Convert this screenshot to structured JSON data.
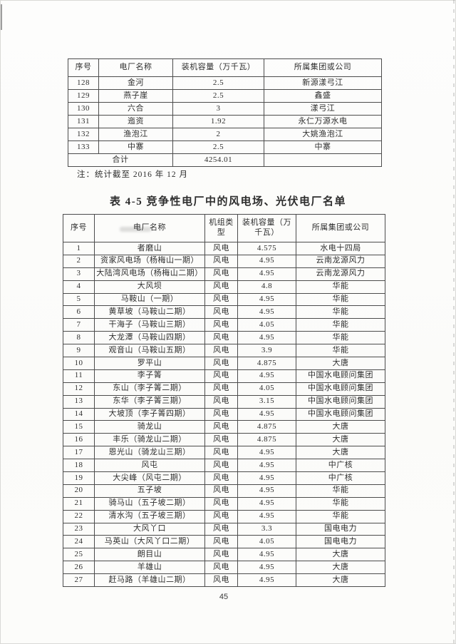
{
  "page": {
    "number": "45"
  },
  "hydro_table": {
    "columns": [
      "序号",
      "电厂名称",
      "装机容量（万千瓦）",
      "所属集团或公司"
    ],
    "rows": [
      [
        "128",
        "金河",
        "2.5",
        "新源漾弓江"
      ],
      [
        "129",
        "燕子崖",
        "2.5",
        "鑫盛"
      ],
      [
        "130",
        "六合",
        "3",
        "漾弓江"
      ],
      [
        "131",
        "迤资",
        "1.92",
        "永仁万源水电"
      ],
      [
        "132",
        "渔泡江",
        "2",
        "大姚渔泡江"
      ],
      [
        "133",
        "中寨",
        "2.5",
        "中寨"
      ]
    ],
    "total_label": "合计",
    "total_value": "4254.01",
    "note": "注：统计截至 2016 年 12 月"
  },
  "section": {
    "title": "表 4-5 竞争性电厂中的风电场、光伏电厂名单"
  },
  "wind_table": {
    "columns": [
      "序号",
      "电厂名称",
      "机组类型",
      "装机容量（万千瓦）",
      "所属集团或公司"
    ],
    "rows": [
      [
        "1",
        "者磨山",
        "风电",
        "4.575",
        "水电十四局"
      ],
      [
        "2",
        "资家风电场（杨梅山一期）",
        "风电",
        "4.95",
        "云南龙源风力"
      ],
      [
        "3",
        "大陆湾风电场（杨梅山二期）",
        "风电",
        "4.95",
        "云南龙源风力"
      ],
      [
        "4",
        "大风坝",
        "风电",
        "4.8",
        "华能"
      ],
      [
        "5",
        "马鞍山（一期）",
        "风电",
        "4.95",
        "华能"
      ],
      [
        "6",
        "黄草坡（马鞍山二期）",
        "风电",
        "4.95",
        "华能"
      ],
      [
        "7",
        "干海子（马鞍山三期）",
        "风电",
        "4.05",
        "华能"
      ],
      [
        "8",
        "大龙潭（马鞍山四期）",
        "风电",
        "4.95",
        "华能"
      ],
      [
        "9",
        "观音山（马鞍山五期）",
        "风电",
        "3.9",
        "华能"
      ],
      [
        "10",
        "罗平山",
        "风电",
        "4.875",
        "大唐"
      ],
      [
        "11",
        "李子箐",
        "风电",
        "4.95",
        "中国水电顾问集团"
      ],
      [
        "12",
        "东山（李子箐二期）",
        "风电",
        "4.05",
        "中国水电顾问集团"
      ],
      [
        "13",
        "东华（李子箐三期）",
        "风电",
        "3.15",
        "中国水电顾问集团"
      ],
      [
        "14",
        "大坡顶（李子箐四期）",
        "风电",
        "4.95",
        "中国水电顾问集团"
      ],
      [
        "15",
        "骑龙山",
        "风电",
        "4.875",
        "大唐"
      ],
      [
        "16",
        "丰乐（骑龙山二期）",
        "风电",
        "4.875",
        "大唐"
      ],
      [
        "17",
        "恩光山（骑龙山三期）",
        "风电",
        "4.95",
        "大唐"
      ],
      [
        "18",
        "风屯",
        "风电",
        "4.95",
        "中广核"
      ],
      [
        "19",
        "大尖峰（风屯二期）",
        "风电",
        "4.95",
        "中广核"
      ],
      [
        "20",
        "五子坡",
        "风电",
        "4.95",
        "华能"
      ],
      [
        "21",
        "骑马山（五子坡二期）",
        "风电",
        "4.95",
        "华能"
      ],
      [
        "22",
        "清水沟（五子坡三期）",
        "风电",
        "4.95",
        "华能"
      ],
      [
        "23",
        "大风丫口",
        "风电",
        "3.3",
        "国电电力"
      ],
      [
        "24",
        "马英山（大风丫口二期）",
        "风电",
        "4.05",
        "国电电力"
      ],
      [
        "25",
        "朗目山",
        "风电",
        "4.95",
        "大唐"
      ],
      [
        "26",
        "羊雄山",
        "风电",
        "4.95",
        "大唐"
      ],
      [
        "27",
        "赶马路（羊雄山二期）",
        "风电",
        "4.95",
        "大唐"
      ]
    ]
  }
}
